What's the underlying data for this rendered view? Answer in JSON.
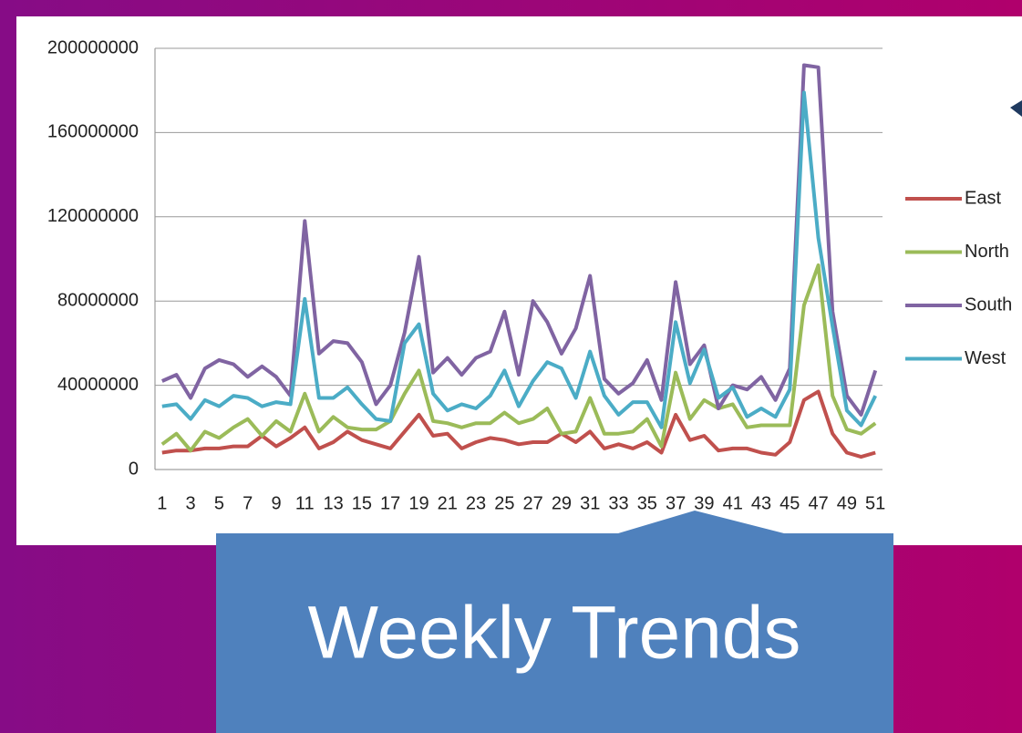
{
  "callout": "Weekly Trends",
  "chart_data": {
    "type": "line",
    "categories": [
      1,
      null,
      3,
      null,
      5,
      null,
      7,
      null,
      9,
      null,
      11,
      null,
      13,
      null,
      15,
      null,
      17,
      null,
      19,
      null,
      21,
      null,
      23,
      null,
      25,
      null,
      27,
      null,
      29,
      null,
      31,
      null,
      33,
      null,
      35,
      null,
      37,
      null,
      39,
      null,
      41,
      null,
      43,
      null,
      45,
      null,
      47,
      null,
      49,
      null,
      51
    ],
    "series": [
      {
        "name": "East",
        "color": "#c0504d",
        "values": [
          8000000,
          9000000,
          9000000,
          10000000,
          10000000,
          11000000,
          11000000,
          16000000,
          11000000,
          15000000,
          20000000,
          10000000,
          13000000,
          18000000,
          14000000,
          12000000,
          10000000,
          18000000,
          26000000,
          16000000,
          17000000,
          10000000,
          13000000,
          15000000,
          14000000,
          12000000,
          13000000,
          13000000,
          17000000,
          13000000,
          18000000,
          10000000,
          12000000,
          10000000,
          13000000,
          8000000,
          26000000,
          14000000,
          16000000,
          9000000,
          10000000,
          10000000,
          8000000,
          7000000,
          13000000,
          33000000,
          37000000,
          17000000,
          8000000,
          6000000,
          8000000
        ]
      },
      {
        "name": "North",
        "color": "#9bbb59",
        "values": [
          12000000,
          17000000,
          9000000,
          18000000,
          15000000,
          20000000,
          24000000,
          16000000,
          23000000,
          18000000,
          36000000,
          18000000,
          25000000,
          20000000,
          19000000,
          19000000,
          23000000,
          36000000,
          47000000,
          23000000,
          22000000,
          20000000,
          22000000,
          22000000,
          27000000,
          22000000,
          24000000,
          29000000,
          17000000,
          18000000,
          34000000,
          17000000,
          17000000,
          18000000,
          24000000,
          11000000,
          46000000,
          24000000,
          33000000,
          29000000,
          31000000,
          20000000,
          21000000,
          21000000,
          21000000,
          78000000,
          97000000,
          35000000,
          19000000,
          17000000,
          22000000
        ]
      },
      {
        "name": "South",
        "color": "#8064a2",
        "values": [
          42000000,
          45000000,
          34000000,
          48000000,
          52000000,
          50000000,
          44000000,
          49000000,
          44000000,
          35000000,
          118000000,
          55000000,
          61000000,
          60000000,
          51000000,
          31000000,
          40000000,
          65000000,
          101000000,
          46000000,
          53000000,
          45000000,
          53000000,
          56000000,
          75000000,
          45000000,
          80000000,
          70000000,
          55000000,
          67000000,
          92000000,
          43000000,
          36000000,
          41000000,
          52000000,
          33000000,
          89000000,
          50000000,
          59000000,
          29000000,
          40000000,
          38000000,
          44000000,
          33000000,
          48000000,
          192000000,
          191000000,
          75000000,
          35000000,
          26000000,
          47000000
        ]
      },
      {
        "name": "West",
        "color": "#4bacc6",
        "values": [
          30000000,
          31000000,
          24000000,
          33000000,
          30000000,
          35000000,
          34000000,
          30000000,
          32000000,
          31000000,
          81000000,
          34000000,
          34000000,
          39000000,
          31000000,
          24000000,
          23000000,
          60000000,
          69000000,
          36000000,
          28000000,
          31000000,
          29000000,
          35000000,
          47000000,
          30000000,
          42000000,
          51000000,
          48000000,
          34000000,
          56000000,
          35000000,
          26000000,
          32000000,
          32000000,
          20000000,
          70000000,
          41000000,
          57000000,
          34000000,
          39000000,
          25000000,
          29000000,
          25000000,
          38000000,
          179000000,
          110000000,
          68000000,
          28000000,
          21000000,
          35000000
        ]
      }
    ],
    "ylim": [
      0,
      200000000
    ],
    "yticks": [
      0,
      40000000,
      80000000,
      120000000,
      160000000,
      200000000
    ],
    "grid": true,
    "legend": "right"
  }
}
